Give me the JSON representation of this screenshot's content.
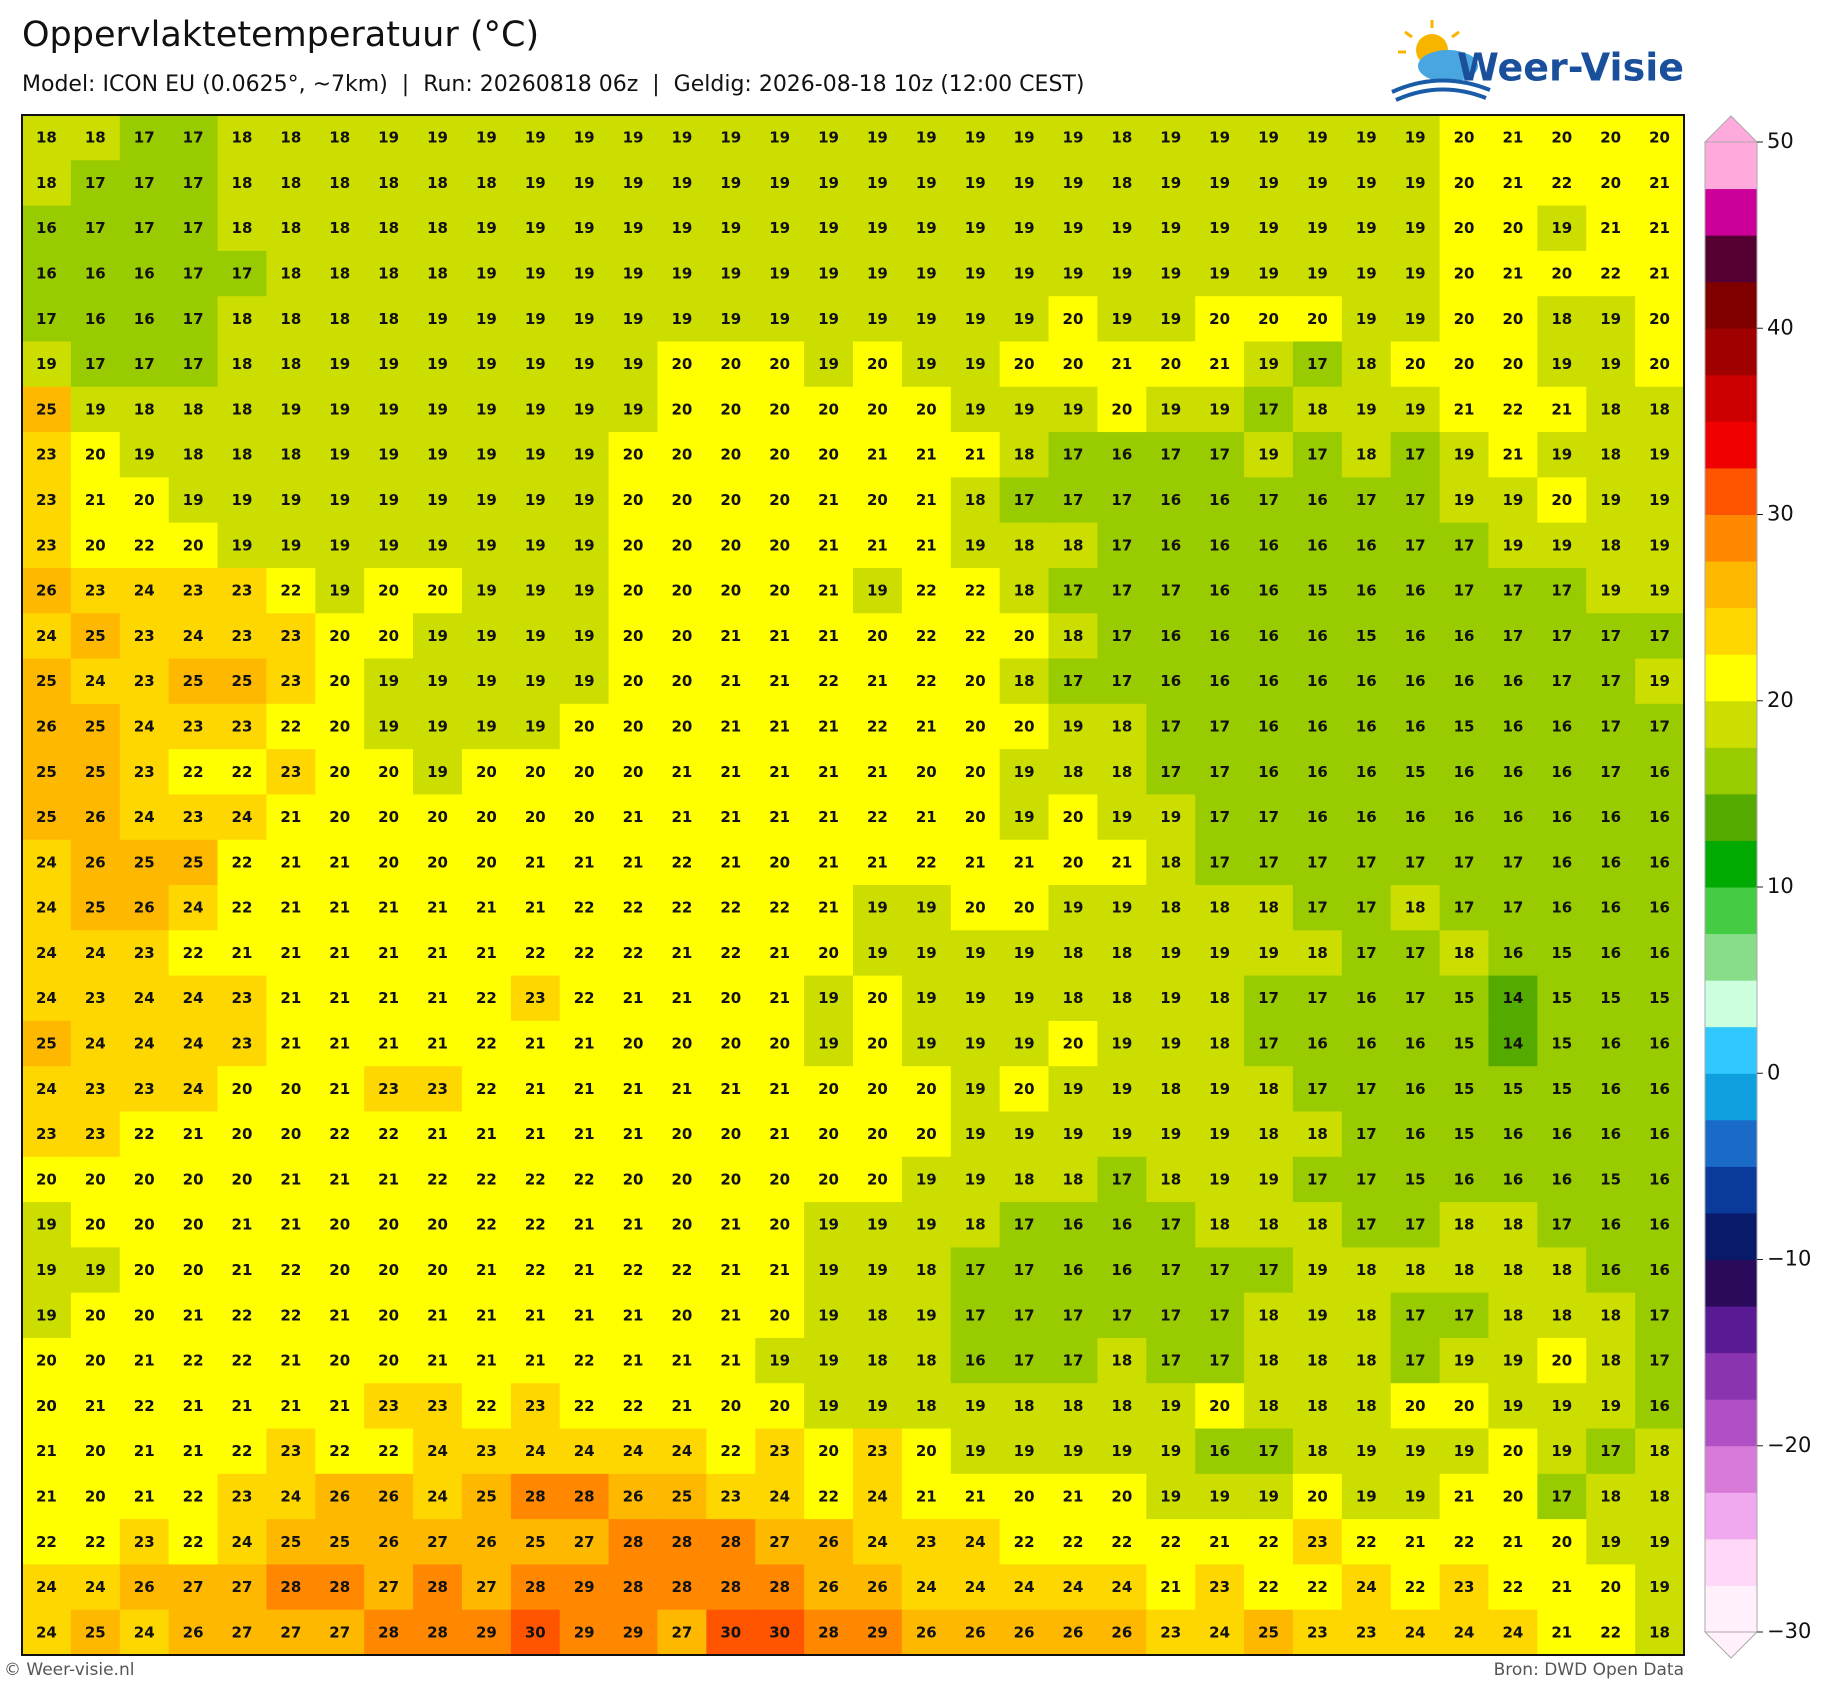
{
  "header": {
    "title": "Oppervlaktetemperatuur (°C)",
    "subtitle": "Model: ICON EU (0.0625°, ~7km)  |  Run: 20260818 06z  |  Geldig: 2026-08-18 10z (12:00 CEST)",
    "logo": "Weer-Visie"
  },
  "map": {
    "rows": [
      [
        18,
        18,
        17,
        17,
        18,
        18,
        18,
        19,
        19,
        19,
        19,
        19,
        19,
        19,
        19,
        19,
        19,
        19,
        19,
        19,
        19,
        19,
        18,
        19,
        19,
        19,
        19,
        19,
        19,
        20,
        21,
        20,
        20,
        20
      ],
      [
        18,
        17,
        17,
        17,
        18,
        18,
        18,
        18,
        18,
        18,
        19,
        19,
        19,
        19,
        19,
        19,
        19,
        19,
        19,
        19,
        19,
        19,
        18,
        19,
        19,
        19,
        19,
        19,
        19,
        20,
        21,
        22,
        20,
        21
      ],
      [
        16,
        17,
        17,
        17,
        18,
        18,
        18,
        18,
        18,
        19,
        19,
        19,
        19,
        19,
        19,
        19,
        19,
        19,
        19,
        19,
        19,
        19,
        19,
        19,
        19,
        19,
        19,
        19,
        19,
        20,
        20,
        19,
        21,
        21
      ],
      [
        16,
        16,
        16,
        17,
        17,
        18,
        18,
        18,
        18,
        19,
        19,
        19,
        19,
        19,
        19,
        19,
        19,
        19,
        19,
        19,
        19,
        19,
        19,
        19,
        19,
        19,
        19,
        19,
        19,
        20,
        21,
        20,
        22,
        21
      ],
      [
        17,
        16,
        16,
        17,
        18,
        18,
        18,
        18,
        19,
        19,
        19,
        19,
        19,
        19,
        19,
        19,
        19,
        19,
        19,
        19,
        19,
        20,
        19,
        19,
        20,
        20,
        20,
        19,
        19,
        20,
        20,
        18,
        19,
        20
      ],
      [
        19,
        17,
        17,
        17,
        18,
        18,
        19,
        19,
        19,
        19,
        19,
        19,
        19,
        20,
        20,
        20,
        19,
        20,
        19,
        19,
        20,
        20,
        21,
        20,
        21,
        19,
        17,
        18,
        20,
        20,
        20,
        19,
        19,
        20
      ],
      [
        25,
        19,
        18,
        18,
        18,
        19,
        19,
        19,
        19,
        19,
        19,
        19,
        19,
        20,
        20,
        20,
        20,
        20,
        20,
        19,
        19,
        19,
        20,
        19,
        19,
        17,
        18,
        19,
        19,
        21,
        22,
        21,
        18,
        18
      ],
      [
        23,
        20,
        19,
        18,
        18,
        18,
        19,
        19,
        19,
        19,
        19,
        19,
        20,
        20,
        20,
        20,
        20,
        21,
        21,
        21,
        18,
        17,
        16,
        17,
        17,
        19,
        17,
        18,
        17,
        19,
        21,
        19,
        18,
        19
      ],
      [
        23,
        21,
        20,
        19,
        19,
        19,
        19,
        19,
        19,
        19,
        19,
        19,
        20,
        20,
        20,
        20,
        21,
        20,
        21,
        18,
        17,
        17,
        17,
        16,
        16,
        17,
        16,
        17,
        17,
        19,
        19,
        20,
        19,
        19
      ],
      [
        23,
        20,
        22,
        20,
        19,
        19,
        19,
        19,
        19,
        19,
        19,
        19,
        20,
        20,
        20,
        20,
        21,
        21,
        21,
        19,
        18,
        18,
        17,
        16,
        16,
        16,
        16,
        16,
        17,
        17,
        19,
        19,
        18,
        19
      ],
      [
        26,
        23,
        24,
        23,
        23,
        22,
        19,
        20,
        20,
        19,
        19,
        19,
        20,
        20,
        20,
        20,
        21,
        19,
        22,
        22,
        18,
        17,
        17,
        17,
        16,
        16,
        15,
        16,
        16,
        17,
        17,
        17,
        19,
        19
      ],
      [
        24,
        25,
        23,
        24,
        23,
        23,
        20,
        20,
        19,
        19,
        19,
        19,
        20,
        20,
        21,
        21,
        21,
        20,
        22,
        22,
        20,
        18,
        17,
        16,
        16,
        16,
        16,
        15,
        16,
        16,
        17,
        17,
        17,
        17
      ],
      [
        25,
        24,
        23,
        25,
        25,
        23,
        20,
        19,
        19,
        19,
        19,
        19,
        20,
        20,
        21,
        21,
        22,
        21,
        22,
        20,
        18,
        17,
        17,
        16,
        16,
        16,
        16,
        16,
        16,
        16,
        16,
        17,
        17,
        19
      ],
      [
        26,
        25,
        24,
        23,
        23,
        22,
        20,
        19,
        19,
        19,
        19,
        20,
        20,
        20,
        21,
        21,
        21,
        22,
        21,
        20,
        20,
        19,
        18,
        17,
        17,
        16,
        16,
        16,
        16,
        15,
        16,
        16,
        17,
        17
      ],
      [
        25,
        25,
        23,
        22,
        22,
        23,
        20,
        20,
        19,
        20,
        20,
        20,
        20,
        21,
        21,
        21,
        21,
        21,
        20,
        20,
        19,
        18,
        18,
        17,
        17,
        16,
        16,
        16,
        15,
        16,
        16,
        16,
        17,
        16
      ],
      [
        25,
        26,
        24,
        23,
        24,
        21,
        20,
        20,
        20,
        20,
        20,
        20,
        21,
        21,
        21,
        21,
        21,
        22,
        21,
        20,
        19,
        20,
        19,
        19,
        17,
        17,
        16,
        16,
        16,
        16,
        16,
        16,
        16,
        16
      ],
      [
        24,
        26,
        25,
        25,
        22,
        21,
        21,
        20,
        20,
        20,
        21,
        21,
        21,
        22,
        21,
        20,
        21,
        21,
        22,
        21,
        21,
        20,
        21,
        18,
        17,
        17,
        17,
        17,
        17,
        17,
        17,
        16,
        16,
        16
      ],
      [
        24,
        25,
        26,
        24,
        22,
        21,
        21,
        21,
        21,
        21,
        21,
        22,
        22,
        22,
        22,
        22,
        21,
        19,
        19,
        20,
        20,
        19,
        19,
        18,
        18,
        18,
        17,
        17,
        18,
        17,
        17,
        16,
        16,
        16
      ],
      [
        24,
        24,
        23,
        22,
        21,
        21,
        21,
        21,
        21,
        21,
        22,
        22,
        22,
        21,
        22,
        21,
        20,
        19,
        19,
        19,
        19,
        18,
        18,
        19,
        19,
        19,
        18,
        17,
        17,
        18,
        16,
        15,
        16,
        16
      ],
      [
        24,
        23,
        24,
        24,
        23,
        21,
        21,
        21,
        21,
        22,
        23,
        22,
        21,
        21,
        20,
        21,
        19,
        20,
        19,
        19,
        19,
        18,
        18,
        19,
        18,
        17,
        17,
        16,
        17,
        15,
        14,
        15,
        15,
        15
      ],
      [
        25,
        24,
        24,
        24,
        23,
        21,
        21,
        21,
        21,
        22,
        21,
        21,
        20,
        20,
        20,
        20,
        19,
        20,
        19,
        19,
        19,
        20,
        19,
        19,
        18,
        17,
        16,
        16,
        16,
        15,
        14,
        15,
        16,
        16
      ],
      [
        24,
        23,
        23,
        24,
        20,
        20,
        21,
        23,
        23,
        22,
        21,
        21,
        21,
        21,
        21,
        21,
        20,
        20,
        20,
        19,
        20,
        19,
        19,
        18,
        19,
        18,
        17,
        17,
        16,
        15,
        15,
        15,
        16,
        16
      ],
      [
        23,
        23,
        22,
        21,
        20,
        20,
        22,
        22,
        21,
        21,
        21,
        21,
        21,
        20,
        20,
        21,
        20,
        20,
        20,
        19,
        19,
        19,
        19,
        19,
        19,
        18,
        18,
        17,
        16,
        15,
        16,
        16,
        16,
        16
      ],
      [
        20,
        20,
        20,
        20,
        20,
        21,
        21,
        21,
        22,
        22,
        22,
        22,
        20,
        20,
        20,
        20,
        20,
        20,
        19,
        19,
        18,
        18,
        17,
        18,
        19,
        19,
        17,
        17,
        15,
        16,
        16,
        16,
        15,
        16
      ],
      [
        19,
        20,
        20,
        20,
        21,
        21,
        20,
        20,
        20,
        22,
        22,
        21,
        21,
        20,
        21,
        20,
        19,
        19,
        19,
        18,
        17,
        16,
        16,
        17,
        18,
        18,
        18,
        17,
        17,
        18,
        18,
        17,
        16,
        16
      ],
      [
        19,
        19,
        20,
        20,
        21,
        22,
        20,
        20,
        20,
        21,
        22,
        21,
        22,
        22,
        21,
        21,
        19,
        19,
        18,
        17,
        17,
        16,
        16,
        17,
        17,
        17,
        19,
        18,
        18,
        18,
        18,
        18,
        16,
        16
      ],
      [
        19,
        20,
        20,
        21,
        22,
        22,
        21,
        20,
        21,
        21,
        21,
        21,
        21,
        20,
        21,
        20,
        19,
        18,
        19,
        17,
        17,
        17,
        17,
        17,
        17,
        18,
        19,
        18,
        17,
        17,
        18,
        18,
        18,
        17
      ],
      [
        20,
        20,
        21,
        22,
        22,
        21,
        20,
        20,
        21,
        21,
        21,
        22,
        21,
        21,
        21,
        19,
        19,
        18,
        18,
        16,
        17,
        17,
        18,
        17,
        17,
        18,
        18,
        18,
        17,
        19,
        19,
        20,
        18,
        17
      ],
      [
        20,
        21,
        22,
        21,
        21,
        21,
        21,
        23,
        23,
        22,
        23,
        22,
        22,
        21,
        20,
        20,
        19,
        19,
        18,
        19,
        18,
        18,
        18,
        19,
        20,
        18,
        18,
        18,
        20,
        20,
        19,
        19,
        19,
        16
      ],
      [
        21,
        20,
        21,
        21,
        22,
        23,
        22,
        22,
        24,
        23,
        24,
        24,
        24,
        24,
        22,
        23,
        20,
        23,
        20,
        19,
        19,
        19,
        19,
        19,
        16,
        17,
        18,
        19,
        19,
        19,
        20,
        19,
        17,
        18
      ],
      [
        21,
        20,
        21,
        22,
        23,
        24,
        26,
        26,
        24,
        25,
        28,
        28,
        26,
        25,
        23,
        24,
        22,
        24,
        21,
        21,
        20,
        21,
        20,
        19,
        19,
        19,
        20,
        19,
        19,
        21,
        20,
        17,
        18,
        18
      ],
      [
        22,
        22,
        23,
        22,
        24,
        25,
        25,
        26,
        27,
        26,
        25,
        27,
        28,
        28,
        28,
        27,
        26,
        24,
        23,
        24,
        22,
        22,
        22,
        22,
        21,
        22,
        23,
        22,
        21,
        22,
        21,
        20,
        19,
        19
      ],
      [
        24,
        24,
        26,
        27,
        27,
        28,
        28,
        27,
        28,
        27,
        28,
        29,
        28,
        28,
        28,
        28,
        26,
        26,
        24,
        24,
        24,
        24,
        24,
        21,
        23,
        22,
        22,
        24,
        22,
        23,
        22,
        21,
        20,
        19
      ],
      [
        24,
        25,
        24,
        26,
        27,
        27,
        27,
        28,
        28,
        29,
        30,
        29,
        29,
        27,
        30,
        30,
        28,
        29,
        26,
        26,
        26,
        26,
        26,
        23,
        24,
        25,
        23,
        23,
        24,
        24,
        24,
        21,
        22,
        18
      ]
    ],
    "colorbar": {
      "clim": [
        -30,
        50
      ],
      "ticks": [
        50,
        40,
        30,
        20,
        10,
        0,
        {
          "value": -10,
          "label": "−10"
        },
        {
          "value": -20,
          "label": "−20"
        },
        {
          "value": -30,
          "label": "−30"
        }
      ],
      "colors": [
        "#fff0fc",
        "#ffd8f8",
        "#f0a8ee",
        "#d87ad8",
        "#b050c4",
        "#8a34b0",
        "#5a1a94",
        "#2a0a5a",
        "#0a1a6a",
        "#0a3a9a",
        "#1a6ac8",
        "#10a0e0",
        "#30c8ff",
        "#ccffdd",
        "#88dd88",
        "#44cc44",
        "#00aa00",
        "#55aa00",
        "#99cc00",
        "#ccdd00",
        "#ffff00",
        "#ffd700",
        "#ffb800",
        "#ff8800",
        "#ff5500",
        "#f00000",
        "#cc0000",
        "#a00000",
        "#800000",
        "#550033",
        "#cc0099",
        "#ffaadd"
      ]
    }
  },
  "footer": {
    "left": "© Weer-visie.nl",
    "right": "Bron: DWD Open Data"
  }
}
